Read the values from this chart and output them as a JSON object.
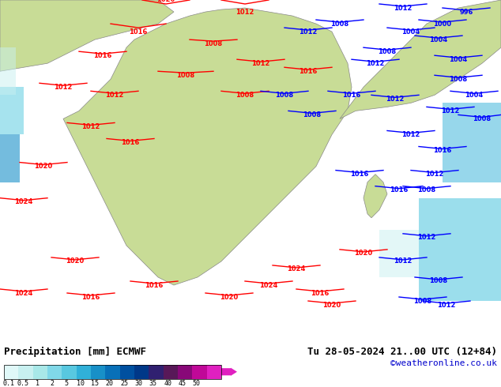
{
  "title_left": "Precipitation [mm] ECMWF",
  "title_right": "Tu 28-05-2024 21..00 UTC (12+84)",
  "credit": "©weatheronline.co.uk",
  "colorbar_values": [
    0.1,
    0.5,
    1,
    2,
    5,
    10,
    15,
    20,
    25,
    30,
    35,
    40,
    45,
    50
  ],
  "colorbar_colors": [
    "#e0f8f8",
    "#c8f0f0",
    "#a8e8e8",
    "#80d8e8",
    "#58c8e0",
    "#30b0d8",
    "#1890c8",
    "#0870b8",
    "#0050a0",
    "#003888",
    "#302070",
    "#581858",
    "#880878",
    "#c00898",
    "#e020c0"
  ],
  "background_color": "#ffffff",
  "map_bg": "#e8f8e8",
  "ocean_color": "#cce8f8",
  "label_font_size": 9,
  "credit_color": "#0000cc"
}
